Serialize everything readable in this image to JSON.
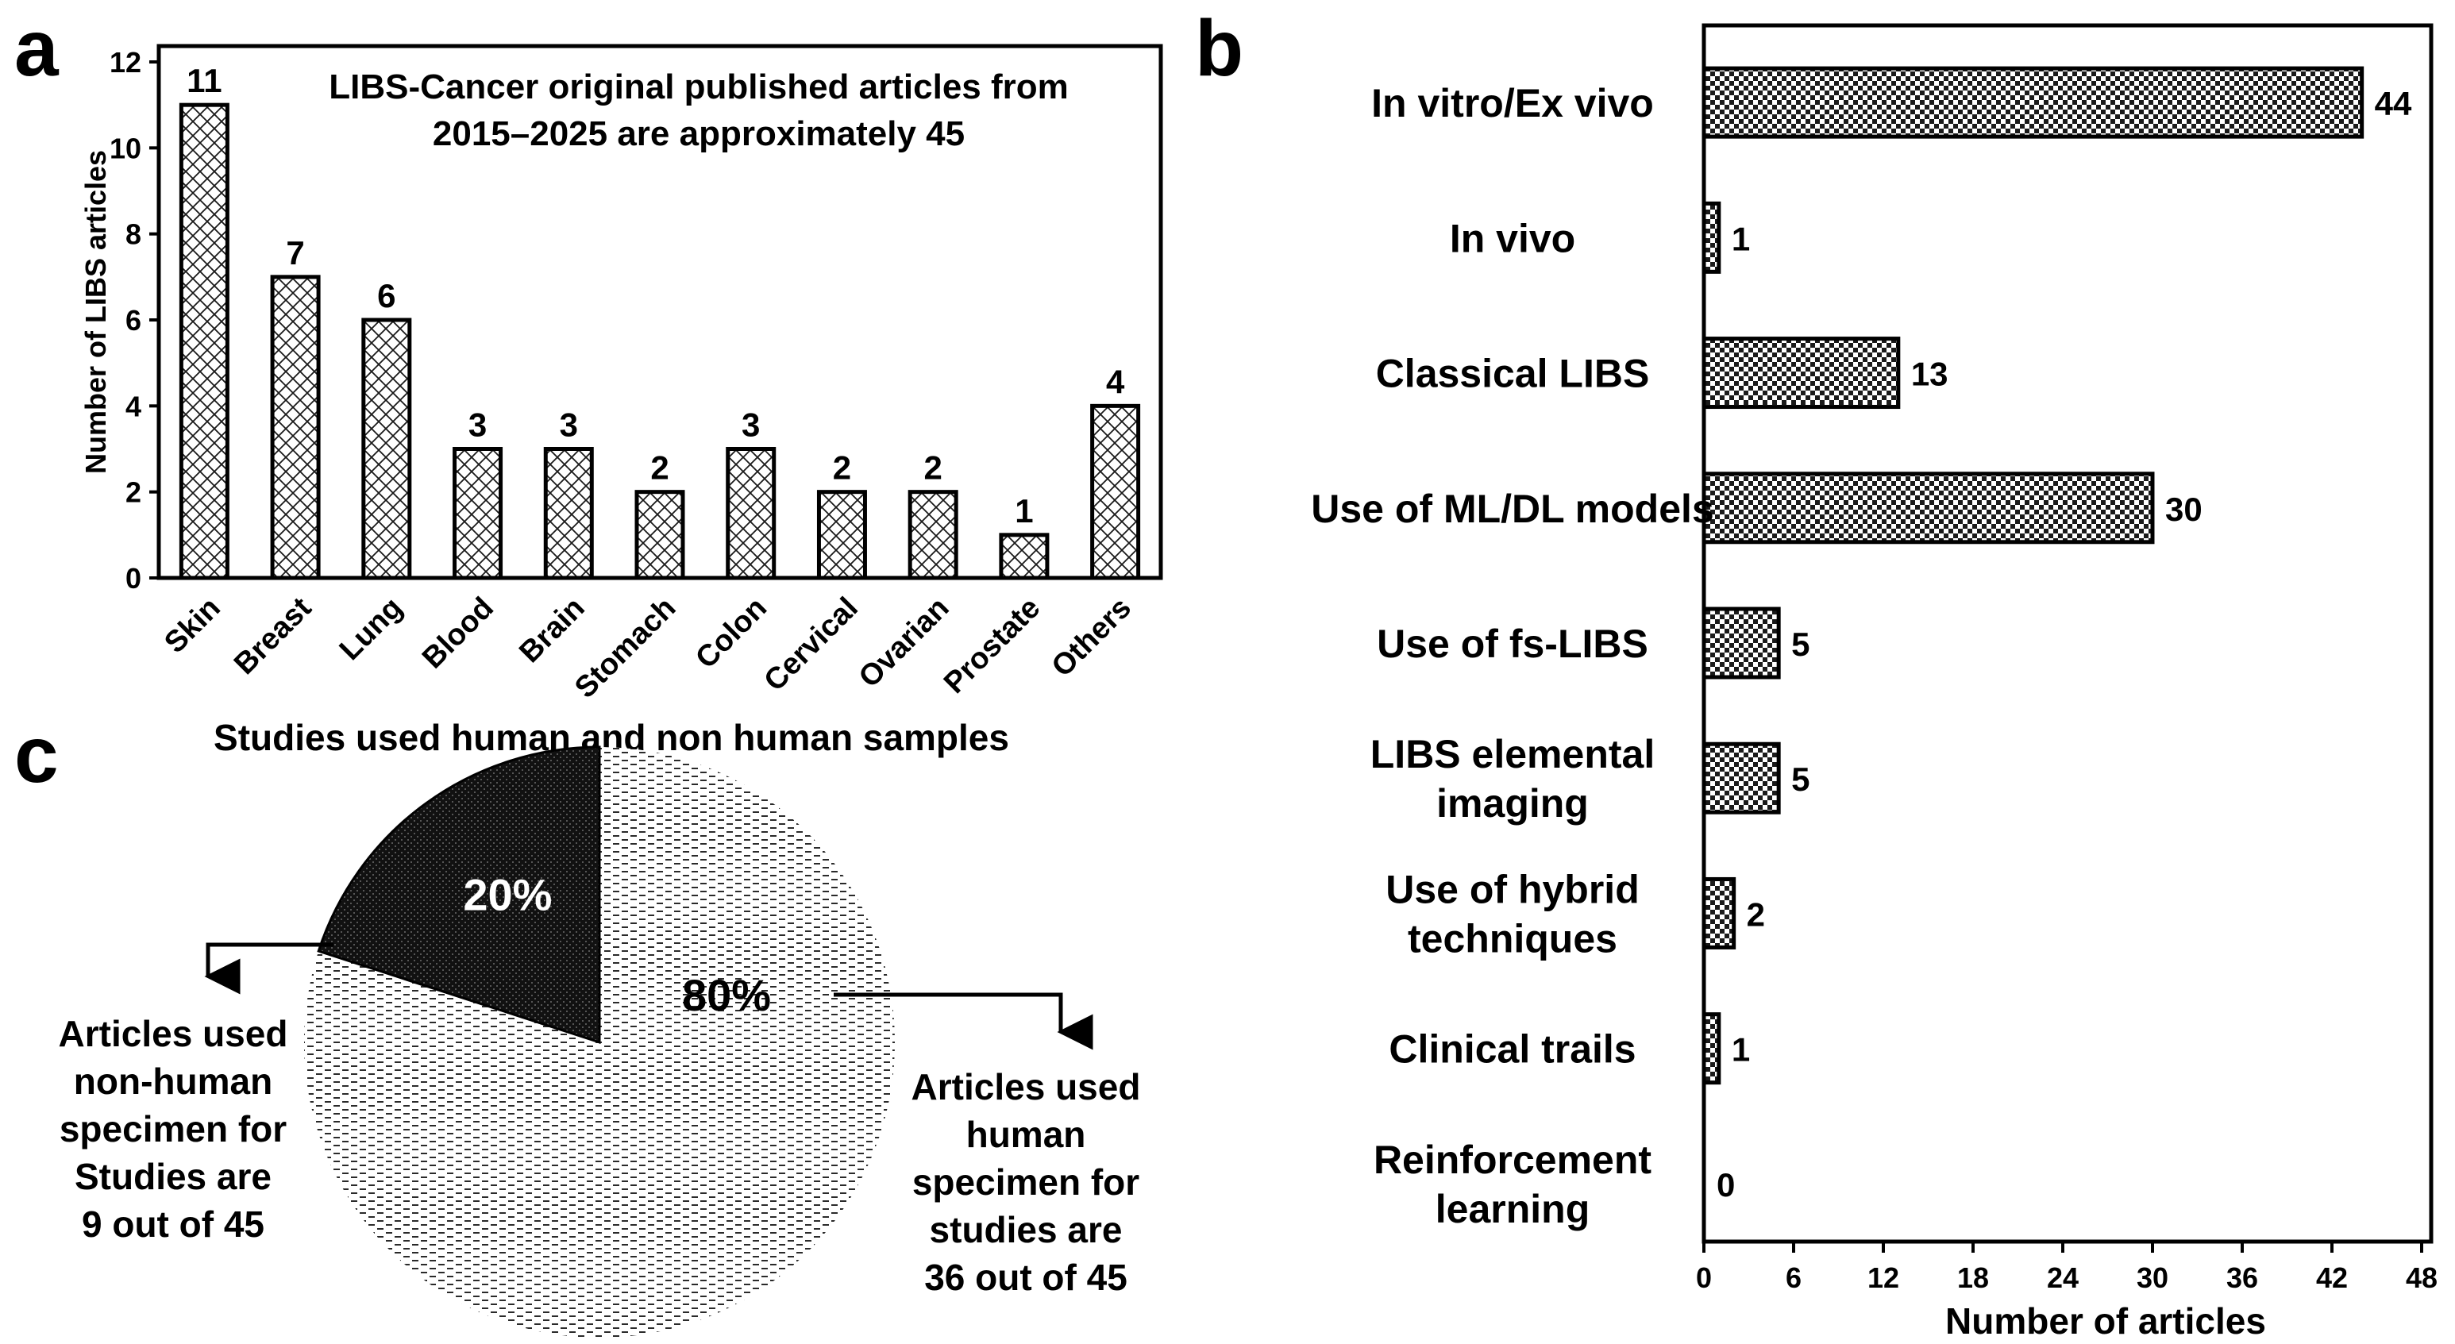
{
  "panel_labels": {
    "a": "a",
    "b": "b",
    "c": "c"
  },
  "chart_data": [
    {
      "panel": "a",
      "type": "bar",
      "title_lines": [
        "LIBS-Cancer original published articles from",
        "2015–2025 are approximately 45"
      ],
      "xlabel": "",
      "ylabel": "Number of LIBS articles",
      "ylim": [
        0,
        12
      ],
      "yticks": [
        "0",
        "2",
        "4",
        "6",
        "8",
        "10",
        "12"
      ],
      "categories": [
        "Skin",
        "Breast",
        "Lung",
        "Blood",
        "Brain",
        "Stomach",
        "Colon",
        "Cervical",
        "Ovarian",
        "Prostate",
        "Others"
      ],
      "values": [
        11,
        7,
        6,
        3,
        3,
        2,
        3,
        2,
        2,
        1,
        4
      ],
      "value_labels": [
        "11",
        "7",
        "6",
        "3",
        "3",
        "2",
        "3",
        "2",
        "2",
        "1",
        "4"
      ],
      "pattern": "crosshatch"
    },
    {
      "panel": "b",
      "type": "bar",
      "orientation": "horizontal",
      "xlabel": "Number of articles",
      "ylabel": "",
      "xlim": [
        0,
        48
      ],
      "xticks": [
        "0",
        "6",
        "12",
        "18",
        "24",
        "30",
        "36",
        "42",
        "48"
      ],
      "categories": [
        [
          "In vitro/Ex vivo"
        ],
        [
          "In vivo"
        ],
        [
          "Classical LIBS"
        ],
        [
          "Use of ML/DL models"
        ],
        [
          "Use of fs-LIBS"
        ],
        [
          "LIBS elemental",
          "imaging"
        ],
        [
          "Use of hybrid",
          "techniques"
        ],
        [
          "Clinical trails"
        ],
        [
          "Reinforcement",
          "learning"
        ]
      ],
      "values": [
        44,
        1,
        13,
        30,
        5,
        5,
        2,
        1,
        0
      ],
      "value_labels": [
        "44",
        "1",
        "13",
        "30",
        "5",
        "5",
        "2",
        "1",
        "0"
      ],
      "pattern": "checker"
    },
    {
      "panel": "c",
      "type": "pie",
      "title": "Studies used human and  non human samples",
      "slices": [
        {
          "name": "non-human",
          "value": 20,
          "label": "20%",
          "note_lines": [
            "Articles used",
            "non-human",
            "specimen for",
            "Studies are",
            "9 out of 45"
          ]
        },
        {
          "name": "human",
          "value": 80,
          "label": "80%",
          "note_lines": [
            "Articles used",
            "human",
            "specimen for",
            "studies are",
            "36 out of 45"
          ]
        }
      ]
    }
  ]
}
